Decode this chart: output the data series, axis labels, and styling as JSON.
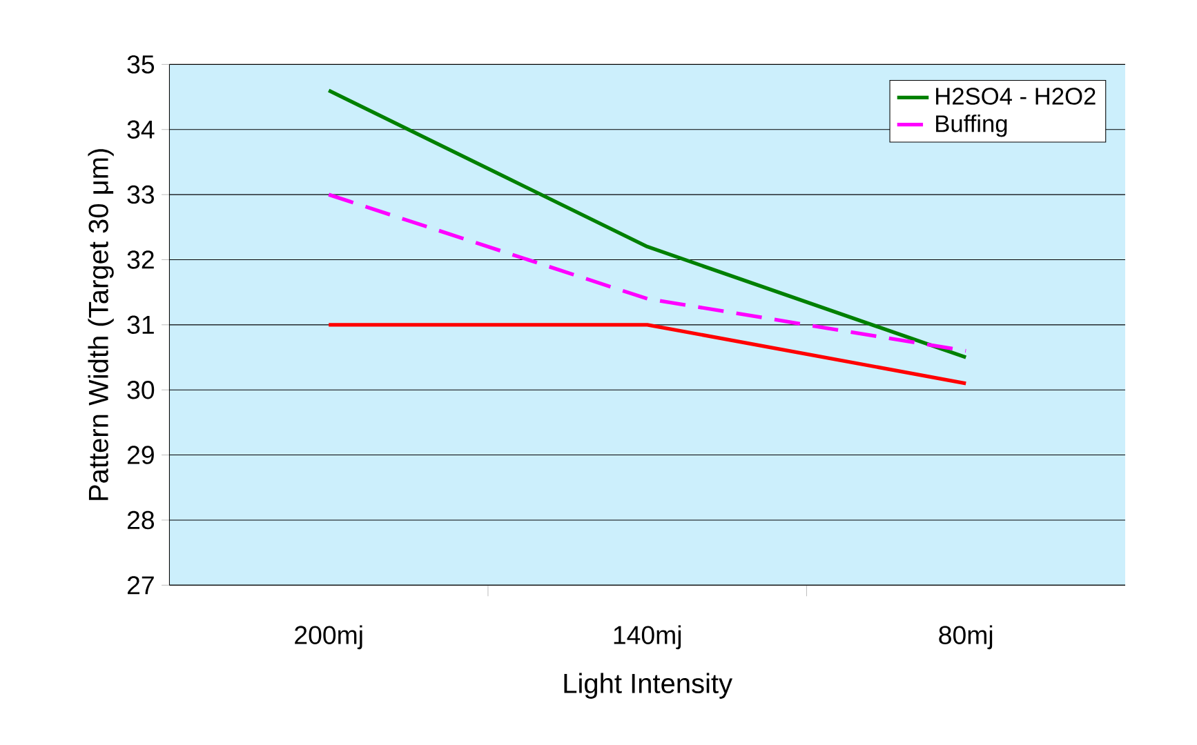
{
  "chart_data": {
    "type": "line",
    "xlabel": "Light Intensity",
    "ylabel": "Pattern Width (Target 30 μm)",
    "categories": [
      "200mj",
      "140mj",
      "80mj"
    ],
    "series": [
      {
        "name": "H2SO4 - H2O2",
        "color": "#008000",
        "values": [
          34.6,
          32.2,
          30.5
        ],
        "line_style": "solid"
      },
      {
        "name": "Buffing",
        "color": "#ff00ff",
        "values": [
          33.0,
          31.4,
          30.6
        ],
        "line_style": "dashed"
      },
      {
        "color": "#ff0000",
        "values": [
          31.0,
          31.0,
          30.1
        ],
        "line_style": "solid"
      }
    ],
    "ylim": [
      27,
      35
    ],
    "yticks": [
      27,
      28,
      29,
      30,
      31,
      32,
      33,
      34,
      35
    ],
    "grid": "y",
    "legend": "top right",
    "marker": "none"
  }
}
